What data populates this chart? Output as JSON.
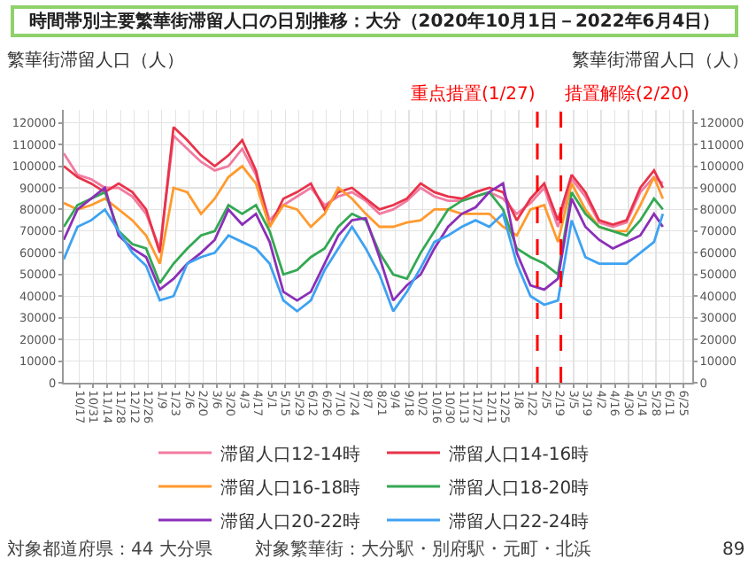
{
  "chart_data": {
    "type": "line",
    "title": "時間帯別主要繁華街滞留人口の日別推移：大分（2020年10月1日－2022年6月4日）",
    "ylabel": "繁華街滞留人口（人）",
    "y2label": "繁華街滞留人口（人）",
    "x": [
      "2020-10-01",
      "2020-10-15",
      "2020-10-29",
      "2020-11-12",
      "2020-11-26",
      "2020-12-10",
      "2020-12-24",
      "2021-01-07",
      "2021-01-21",
      "2021-02-04",
      "2021-02-18",
      "2021-03-04",
      "2021-03-18",
      "2021-04-01",
      "2021-04-15",
      "2021-04-29",
      "2021-05-13",
      "2021-05-27",
      "2021-06-10",
      "2021-06-24",
      "2021-07-08",
      "2021-07-22",
      "2021-08-05",
      "2021-08-19",
      "2021-09-02",
      "2021-09-16",
      "2021-09-30",
      "2021-10-14",
      "2021-10-28",
      "2021-11-11",
      "2021-11-25",
      "2021-12-09",
      "2021-12-23",
      "2022-01-06",
      "2022-01-20",
      "2022-02-03",
      "2022-02-17",
      "2022-03-03",
      "2022-03-17",
      "2022-03-31",
      "2022-04-14",
      "2022-04-28",
      "2022-05-12",
      "2022-05-26",
      "2022-06-04"
    ],
    "series": [
      {
        "name": "滞留人口12-14時",
        "color": "#f27ba0",
        "values": [
          106000,
          96000,
          94000,
          90000,
          90000,
          86000,
          78000,
          62000,
          114000,
          108000,
          102000,
          98000,
          100000,
          108000,
          96000,
          75000,
          82000,
          86000,
          90000,
          82000,
          86000,
          88000,
          84000,
          78000,
          80000,
          84000,
          90000,
          86000,
          84000,
          84000,
          86000,
          88000,
          85000,
          78000,
          83000,
          90000,
          72000,
          94000,
          86000,
          74000,
          72000,
          74000,
          88000,
          95000,
          92000
        ]
      },
      {
        "name": "滞留人口14-16時",
        "color": "#e8334a",
        "values": [
          100000,
          95000,
          92000,
          88000,
          92000,
          88000,
          80000,
          60000,
          118000,
          112000,
          105000,
          100000,
          105000,
          112000,
          98000,
          72000,
          85000,
          88000,
          92000,
          80000,
          88000,
          90000,
          85000,
          80000,
          82000,
          85000,
          92000,
          88000,
          86000,
          85000,
          88000,
          90000,
          88000,
          75000,
          85000,
          92000,
          75000,
          96000,
          88000,
          75000,
          73000,
          75000,
          90000,
          98000,
          90000
        ]
      },
      {
        "name": "滞留人口16-18時",
        "color": "#ff9a2e",
        "values": [
          83000,
          80000,
          82000,
          85000,
          80000,
          75000,
          68000,
          55000,
          90000,
          88000,
          78000,
          85000,
          95000,
          100000,
          92000,
          72000,
          82000,
          80000,
          72000,
          78000,
          90000,
          85000,
          78000,
          72000,
          72000,
          74000,
          75000,
          80000,
          80000,
          78000,
          78000,
          78000,
          72000,
          68000,
          80000,
          82000,
          65000,
          92000,
          80000,
          72000,
          70000,
          70000,
          82000,
          95000,
          85000
        ]
      },
      {
        "name": "滞留人口18-20時",
        "color": "#34a853",
        "values": [
          72000,
          82000,
          85000,
          88000,
          70000,
          64000,
          62000,
          46000,
          55000,
          62000,
          68000,
          70000,
          82000,
          78000,
          82000,
          70000,
          50000,
          52000,
          58000,
          62000,
          72000,
          78000,
          75000,
          60000,
          50000,
          48000,
          60000,
          70000,
          80000,
          84000,
          86000,
          88000,
          80000,
          62000,
          58000,
          55000,
          50000,
          88000,
          78000,
          72000,
          70000,
          68000,
          75000,
          85000,
          80000
        ]
      },
      {
        "name": "滞留人口20-22時",
        "color": "#8b2fb8",
        "values": [
          66000,
          80000,
          85000,
          90000,
          68000,
          62000,
          58000,
          43000,
          48000,
          55000,
          60000,
          66000,
          80000,
          73000,
          78000,
          65000,
          42000,
          38000,
          42000,
          55000,
          68000,
          75000,
          76000,
          58000,
          38000,
          45000,
          50000,
          62000,
          72000,
          78000,
          81000,
          88000,
          92000,
          60000,
          45000,
          43000,
          48000,
          85000,
          72000,
          66000,
          62000,
          65000,
          68000,
          78000,
          72000
        ]
      },
      {
        "name": "滞留人口22-24時",
        "color": "#3ea2f2",
        "values": [
          57000,
          72000,
          75000,
          80000,
          70000,
          60000,
          54000,
          38000,
          40000,
          55000,
          58000,
          60000,
          68000,
          65000,
          62000,
          55000,
          38000,
          33000,
          38000,
          52000,
          62000,
          72000,
          62000,
          50000,
          33000,
          42000,
          53000,
          65000,
          68000,
          72000,
          75000,
          72000,
          78000,
          55000,
          40000,
          36000,
          38000,
          75000,
          58000,
          55000,
          55000,
          55000,
          60000,
          65000,
          78000
        ]
      }
    ],
    "xlim": [
      "2020-10-01",
      "2022-07-04"
    ],
    "xticks": [
      {
        "value": "2020-10-17",
        "label": "10/17"
      },
      {
        "value": "2020-10-31",
        "label": "10/31"
      },
      {
        "value": "2020-11-14",
        "label": "11/14"
      },
      {
        "value": "2020-11-28",
        "label": "11/28"
      },
      {
        "value": "2020-12-12",
        "label": "12/12"
      },
      {
        "value": "2020-12-26",
        "label": "12/26"
      },
      {
        "value": "2021-01-09",
        "label": "1/9"
      },
      {
        "value": "2021-01-23",
        "label": "1/23"
      },
      {
        "value": "2021-02-06",
        "label": "2/6"
      },
      {
        "value": "2021-02-20",
        "label": "2/20"
      },
      {
        "value": "2021-03-06",
        "label": "3/6"
      },
      {
        "value": "2021-03-20",
        "label": "3/20"
      },
      {
        "value": "2021-04-03",
        "label": "4/3"
      },
      {
        "value": "2021-04-17",
        "label": "4/17"
      },
      {
        "value": "2021-05-01",
        "label": "5/1"
      },
      {
        "value": "2021-05-15",
        "label": "5/15"
      },
      {
        "value": "2021-05-29",
        "label": "5/29"
      },
      {
        "value": "2021-06-12",
        "label": "6/12"
      },
      {
        "value": "2021-06-26",
        "label": "6/26"
      },
      {
        "value": "2021-07-10",
        "label": "7/10"
      },
      {
        "value": "2021-07-24",
        "label": "7/24"
      },
      {
        "value": "2021-08-07",
        "label": "8/7"
      },
      {
        "value": "2021-08-21",
        "label": "8/21"
      },
      {
        "value": "2021-09-04",
        "label": "9/4"
      },
      {
        "value": "2021-09-18",
        "label": "9/18"
      },
      {
        "value": "2021-10-02",
        "label": "10/2"
      },
      {
        "value": "2021-10-16",
        "label": "10/16"
      },
      {
        "value": "2021-10-30",
        "label": "10/30"
      },
      {
        "value": "2021-11-13",
        "label": "11/13"
      },
      {
        "value": "2021-11-27",
        "label": "11/27"
      },
      {
        "value": "2021-12-11",
        "label": "12/11"
      },
      {
        "value": "2021-12-25",
        "label": "12/25"
      },
      {
        "value": "2022-01-08",
        "label": "1/8"
      },
      {
        "value": "2022-01-22",
        "label": "1/22"
      },
      {
        "value": "2022-02-05",
        "label": "2/5"
      },
      {
        "value": "2022-02-19",
        "label": "2/19"
      },
      {
        "value": "2022-03-05",
        "label": "3/5"
      },
      {
        "value": "2022-03-19",
        "label": "3/19"
      },
      {
        "value": "2022-04-02",
        "label": "4/2"
      },
      {
        "value": "2022-04-16",
        "label": "4/16"
      },
      {
        "value": "2022-04-30",
        "label": "4/30"
      },
      {
        "value": "2022-05-14",
        "label": "5/14"
      },
      {
        "value": "2022-05-28",
        "label": "5/28"
      },
      {
        "value": "2022-06-11",
        "label": "6/11"
      },
      {
        "value": "2022-06-25",
        "label": "6/25"
      }
    ],
    "ylim": [
      0,
      126000
    ],
    "yticks": [
      0,
      10000,
      20000,
      30000,
      40000,
      50000,
      60000,
      70000,
      80000,
      90000,
      100000,
      110000,
      120000
    ],
    "y2lim": [
      0,
      126000
    ],
    "y2ticks": [
      0,
      10000,
      20000,
      30000,
      40000,
      50000,
      60000,
      70000,
      80000,
      90000,
      100000,
      110000,
      120000
    ],
    "ref_lines": [
      {
        "axis": "x",
        "value": "2022-01-27",
        "label": "重点措置(1/27)",
        "color": "#ff0000",
        "line_style": "dashed"
      },
      {
        "axis": "x",
        "value": "2022-02-20",
        "label": "措置解除(2/20)",
        "color": "#ff0000",
        "line_style": "dashed"
      }
    ],
    "annotations": [
      "対象都道府県：44 大分県",
      "対象繁華街：大分駅・別府駅・元町・北浜",
      "89"
    ],
    "grid": true,
    "legend": "bottom",
    "marker": "none",
    "line_style": "solid"
  }
}
